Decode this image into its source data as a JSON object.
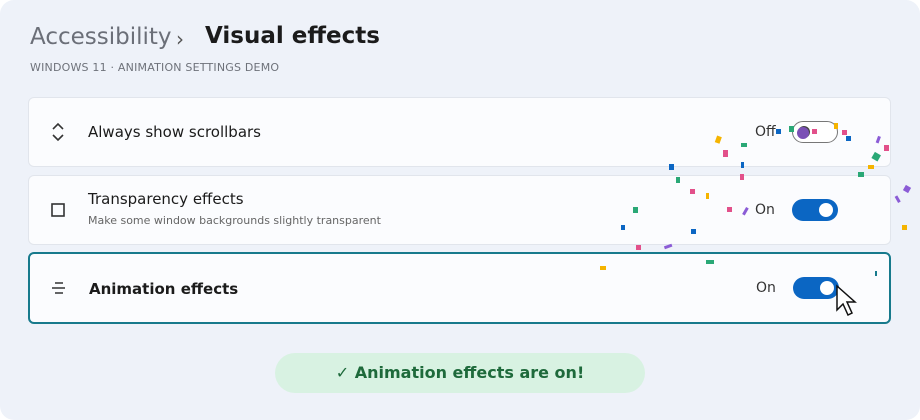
{
  "header": {
    "breadcrumb_parent": "Accessibility",
    "separator": "›",
    "title": "Visual effects",
    "subtitle": "WINDOWS 11 · ANIMATION SETTINGS DEMO"
  },
  "settings": [
    {
      "label": "Always show scrollbars",
      "state": "Off",
      "on": false,
      "focused": false
    },
    {
      "label": "Transparency effects",
      "description": "Make some window backgrounds slightly transparent",
      "state": "On",
      "on": true,
      "focused": false
    },
    {
      "label": "Animation effects",
      "state": "On",
      "on": true,
      "focused": true
    }
  ],
  "status": {
    "message": "✓ Animation effects are on!"
  }
}
